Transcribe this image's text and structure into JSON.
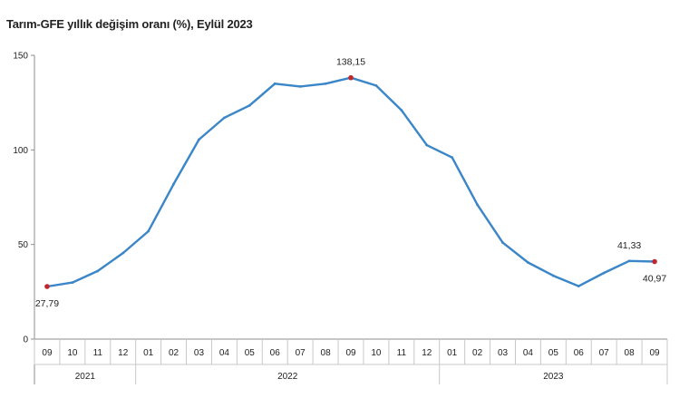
{
  "chart_data": {
    "type": "line",
    "title": "Tarım-GFE yıllık değişim oranı (%), Eylül 2023",
    "xlabel": "",
    "ylabel": "",
    "ylim": [
      0,
      150
    ],
    "yticks": [
      "0",
      "50",
      "100",
      "150"
    ],
    "grid": false,
    "legend": "none",
    "line_color": "#3a86c8",
    "marker_color": "#c0262b",
    "months": [
      "09",
      "10",
      "11",
      "12",
      "01",
      "02",
      "03",
      "04",
      "05",
      "06",
      "07",
      "08",
      "09",
      "10",
      "11",
      "12",
      "01",
      "02",
      "03",
      "04",
      "05",
      "06",
      "07",
      "08",
      "09"
    ],
    "year_groups": [
      {
        "label": "2021",
        "count": 4
      },
      {
        "label": "2022",
        "count": 12
      },
      {
        "label": "2023",
        "count": 9
      }
    ],
    "series": [
      {
        "values": [
          27.79,
          29.9,
          36.0,
          45.5,
          57.0,
          82.0,
          105.5,
          117.0,
          123.5,
          135.0,
          133.5,
          135.0,
          138.15,
          134.0,
          121.0,
          102.5,
          96.0,
          71.0,
          51.0,
          40.5,
          33.5,
          28.0,
          35.0,
          41.33,
          40.97
        ]
      }
    ],
    "annotations": [
      {
        "index": 0,
        "text": "27,79",
        "position": "below"
      },
      {
        "index": 12,
        "text": "138,15",
        "position": "above"
      },
      {
        "index": 23,
        "text": "41,33",
        "position": "above"
      },
      {
        "index": 24,
        "text": "40,97",
        "position": "below"
      }
    ],
    "highlight_markers": [
      0,
      12,
      24
    ]
  }
}
